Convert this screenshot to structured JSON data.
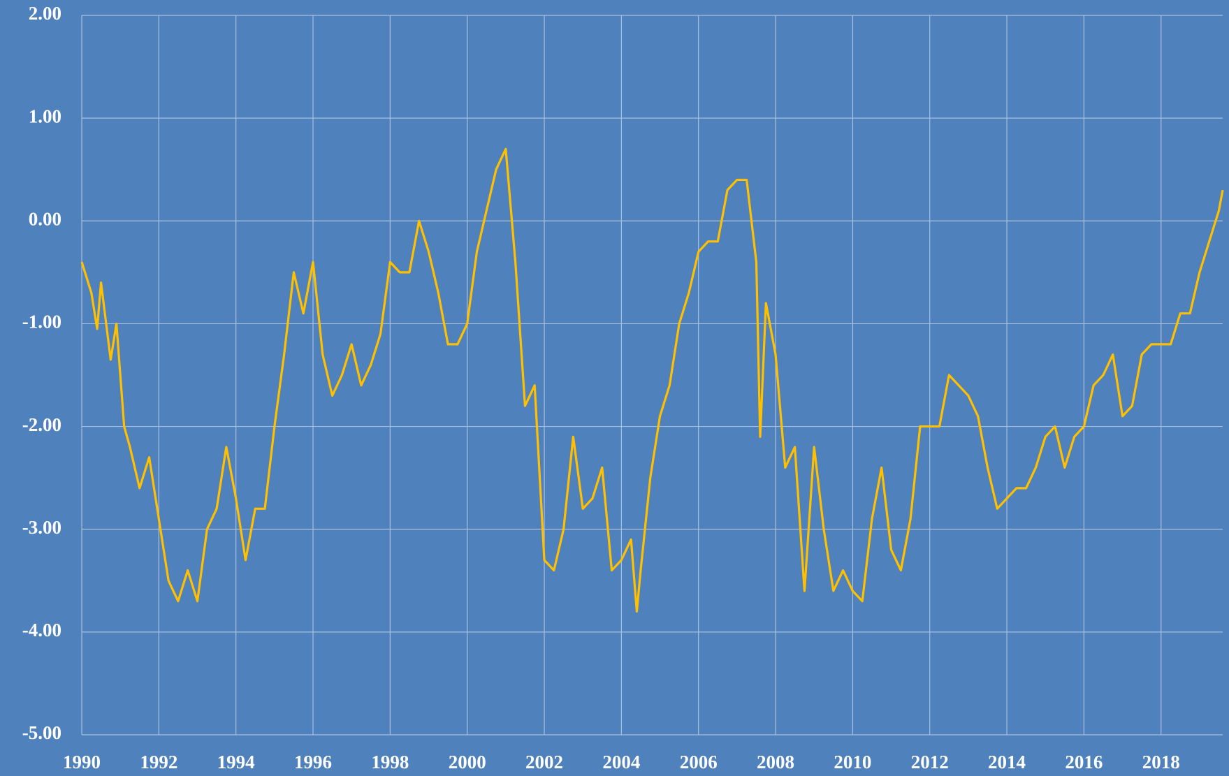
{
  "chart_data": {
    "type": "line",
    "x": [
      1990,
      1990.25,
      1990.4,
      1990.5,
      1990.75,
      1990.9,
      1991.1,
      1991.25,
      1991.5,
      1991.75,
      1992,
      1992.25,
      1992.5,
      1992.75,
      1993,
      1993.25,
      1993.5,
      1993.75,
      1994,
      1994.25,
      1994.5,
      1994.75,
      1995,
      1995.25,
      1995.5,
      1995.75,
      1996,
      1996.25,
      1996.5,
      1996.75,
      1997,
      1997.25,
      1997.5,
      1997.75,
      1998,
      1998.25,
      1998.5,
      1998.75,
      1999,
      1999.25,
      1999.5,
      1999.75,
      2000,
      2000.25,
      2000.5,
      2000.75,
      2001,
      2001.25,
      2001.5,
      2001.75,
      2002,
      2002.25,
      2002.5,
      2002.75,
      2003,
      2003.25,
      2003.5,
      2003.75,
      2004,
      2004.25,
      2004.4,
      2004.5,
      2004.75,
      2005,
      2005.25,
      2005.5,
      2005.75,
      2006,
      2006.25,
      2006.5,
      2006.75,
      2007,
      2007.25,
      2007.5,
      2007.6,
      2007.75,
      2008,
      2008.25,
      2008.5,
      2008.75,
      2009,
      2009.25,
      2009.5,
      2009.75,
      2010,
      2010.25,
      2010.5,
      2010.75,
      2011,
      2011.25,
      2011.5,
      2011.75,
      2012,
      2012.25,
      2012.5,
      2012.75,
      2013,
      2013.25,
      2013.5,
      2013.75,
      2014,
      2014.25,
      2014.5,
      2014.75,
      2015,
      2015.25,
      2015.5,
      2015.75,
      2016,
      2016.25,
      2016.5,
      2016.75,
      2017,
      2017.25,
      2017.5,
      2017.75,
      2018,
      2018.25,
      2018.5,
      2018.75,
      2019,
      2019.25,
      2019.5,
      2019.6
    ],
    "series": [
      {
        "color": "#ffc000",
        "values": [
          -0.4,
          -0.7,
          -1.05,
          -0.6,
          -1.35,
          -1.0,
          -2.0,
          -2.2,
          -2.6,
          -2.3,
          -2.9,
          -3.5,
          -3.7,
          -3.4,
          -3.7,
          -3.0,
          -2.8,
          -2.2,
          -2.7,
          -3.3,
          -2.8,
          -2.8,
          -2.0,
          -1.3,
          -0.5,
          -0.9,
          -0.4,
          -1.3,
          -1.7,
          -1.5,
          -1.2,
          -1.6,
          -1.4,
          -1.1,
          -0.4,
          -0.5,
          -0.5,
          0.0,
          -0.3,
          -0.7,
          -1.2,
          -1.2,
          -1.0,
          -0.3,
          0.1,
          0.5,
          0.7,
          -0.4,
          -1.8,
          -1.6,
          -3.3,
          -3.4,
          -3.0,
          -2.1,
          -2.8,
          -2.7,
          -2.4,
          -3.4,
          -3.3,
          -3.1,
          -3.8,
          -3.4,
          -2.5,
          -1.9,
          -1.6,
          -1.0,
          -0.7,
          -0.3,
          -0.2,
          -0.2,
          0.3,
          0.4,
          0.4,
          -0.4,
          -2.1,
          -0.8,
          -1.3,
          -2.4,
          -2.2,
          -3.6,
          -2.2,
          -3.0,
          -3.6,
          -3.4,
          -3.6,
          -3.7,
          -2.9,
          -2.4,
          -3.2,
          -3.4,
          -2.9,
          -2.0,
          -2.0,
          -2.0,
          -1.5,
          -1.6,
          -1.7,
          -1.9,
          -2.4,
          -2.8,
          -2.7,
          -2.6,
          -2.6,
          -2.4,
          -2.1,
          -2.0,
          -2.4,
          -2.1,
          -2.0,
          -1.6,
          -1.5,
          -1.3,
          -1.9,
          -1.8,
          -1.3,
          -1.2,
          -1.2,
          -1.2,
          -0.9,
          -0.9,
          -0.5,
          -0.2,
          0.1,
          0.3
        ]
      }
    ],
    "xlim": [
      1990,
      2019.6
    ],
    "xticks": [
      1990,
      1992,
      1994,
      1996,
      1998,
      2000,
      2002,
      2004,
      2006,
      2008,
      2010,
      2012,
      2014,
      2016,
      2018
    ],
    "ylim": [
      -5,
      2
    ],
    "yticks": [
      {
        "value": -5,
        "label": "-5.00"
      },
      {
        "value": -4,
        "label": "-4.00"
      },
      {
        "value": -3,
        "label": "-3.00"
      },
      {
        "value": -2,
        "label": "-2.00"
      },
      {
        "value": -1,
        "label": "-1.00"
      },
      {
        "value": 0,
        "label": "0.00"
      },
      {
        "value": 1,
        "label": "1.00"
      },
      {
        "value": 2,
        "label": "2.00"
      }
    ],
    "grid": true,
    "background": "#4f81bd"
  }
}
